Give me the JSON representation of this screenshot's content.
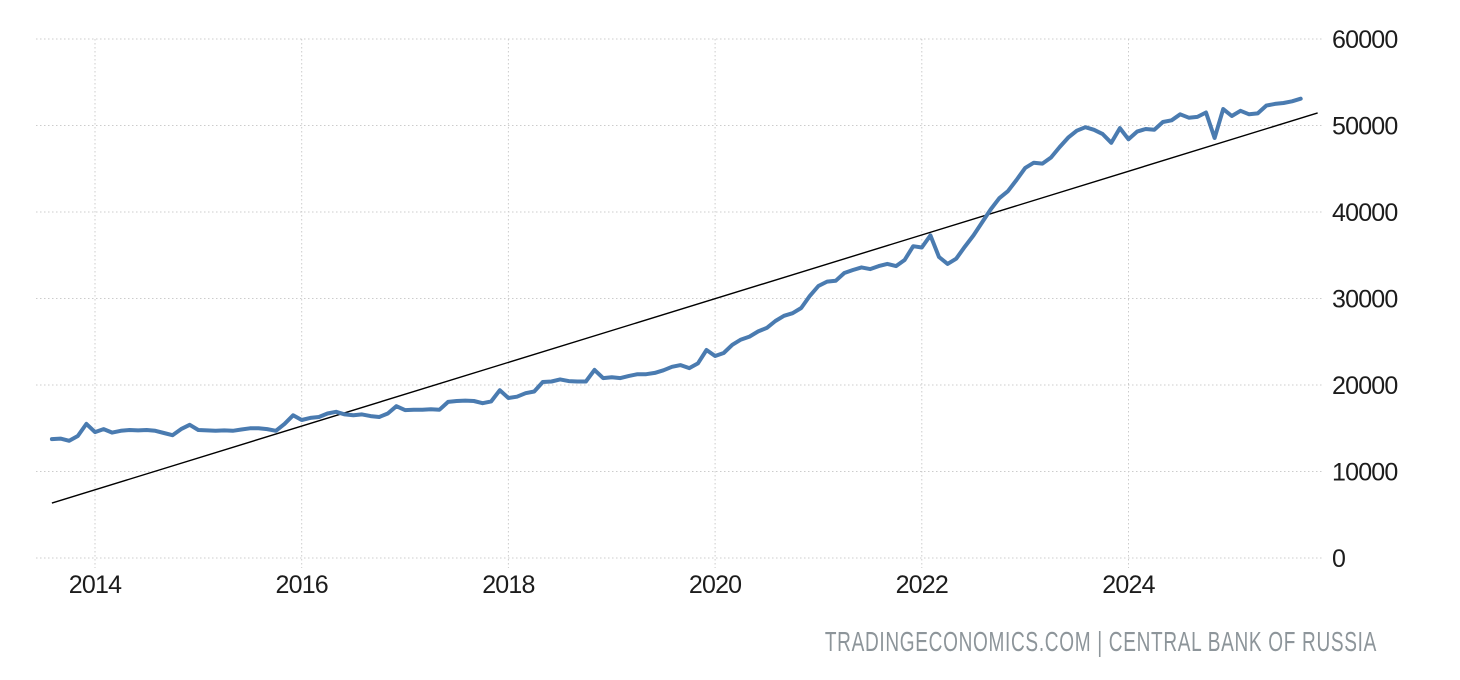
{
  "page": {
    "background": "#ffffff"
  },
  "attribution": {
    "text": "TRADINGECONOMICS.COM | CENTRAL BANK OF RUSSIA",
    "color": "#8d959a"
  },
  "chart_data": {
    "type": "line",
    "title": "",
    "source_label": "CENTRAL BANK OF RUSSIA",
    "site_label": "TRADINGECONOMICS.COM",
    "grid": "dotted",
    "legend": "none",
    "xlim": [
      2013.42,
      2025.92
    ],
    "ylim": [
      0,
      60000
    ],
    "x_ticks": [
      2014,
      2016,
      2018,
      2020,
      2022,
      2024
    ],
    "y_ticks": [
      0,
      10000,
      20000,
      30000,
      40000,
      50000,
      60000
    ],
    "colors": {
      "series": "#4a7bb0",
      "trend": "#000000",
      "grid": "#cccccc",
      "tick_label": "#1c1c1c"
    },
    "series": [
      {
        "name": "indicator",
        "frequency": "monthly",
        "start": "2013-08",
        "end": "2025-09",
        "values": [
          13750,
          13800,
          13550,
          14100,
          15500,
          14550,
          14900,
          14500,
          14700,
          14800,
          14750,
          14800,
          14700,
          14450,
          14200,
          14900,
          15400,
          14800,
          14750,
          14700,
          14750,
          14700,
          14850,
          15000,
          15000,
          14900,
          14700,
          15500,
          16500,
          15950,
          16200,
          16300,
          16700,
          16900,
          16600,
          16500,
          16600,
          16400,
          16300,
          16700,
          17550,
          17100,
          17150,
          17150,
          17200,
          17150,
          18050,
          18150,
          18200,
          18150,
          17900,
          18100,
          19400,
          18500,
          18650,
          19050,
          19250,
          20350,
          20400,
          20650,
          20450,
          20400,
          20400,
          21750,
          20800,
          20900,
          20800,
          21050,
          21250,
          21250,
          21400,
          21700,
          22100,
          22300,
          21950,
          22500,
          24050,
          23350,
          23700,
          24650,
          25250,
          25600,
          26200,
          26600,
          27400,
          28000,
          28300,
          28900,
          30300,
          31450,
          31950,
          32050,
          32950,
          33300,
          33600,
          33400,
          33750,
          34000,
          33750,
          34450,
          36050,
          35900,
          37300,
          34800,
          34000,
          34600,
          36000,
          37300,
          38800,
          40300,
          41600,
          42400,
          43700,
          45100,
          45700,
          45600,
          46300,
          47500,
          48600,
          49400,
          49800,
          49500,
          49000,
          48000,
          49700,
          48400,
          49300,
          49600,
          49500,
          50400,
          50600,
          51300,
          50900,
          51000,
          51500,
          48550,
          51900,
          51100,
          51700,
          51300,
          51400,
          52300,
          52500,
          52600,
          52800,
          53100
        ]
      }
    ],
    "trend_line": {
      "points": [
        {
          "t": 2013.583,
          "value": 6350
        },
        {
          "t": 2025.83,
          "value": 51450
        }
      ]
    }
  }
}
